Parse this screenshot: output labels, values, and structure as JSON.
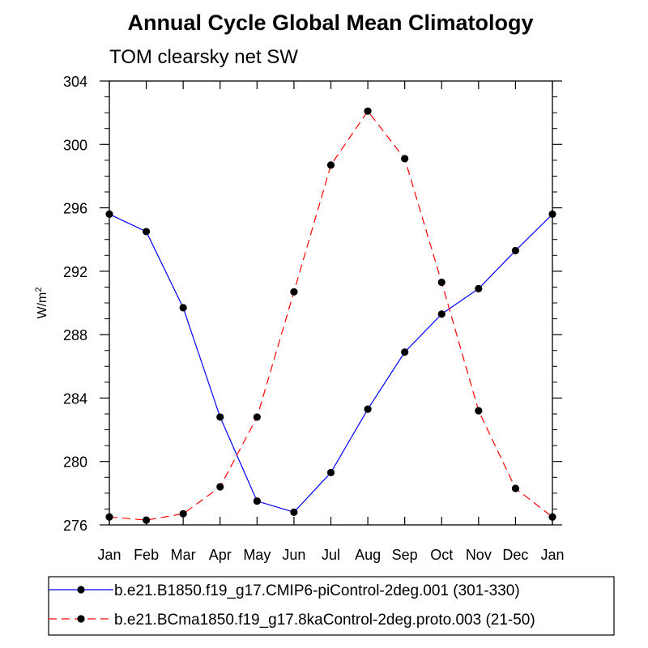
{
  "chart_data": {
    "type": "line",
    "title": "Annual Cycle Global Mean Climatology",
    "subtitle": "TOM clearsky net SW",
    "xlabel": "",
    "ylabel": "W/m",
    "ylabel_superscript": "2",
    "categories": [
      "Jan",
      "Feb",
      "Mar",
      "Apr",
      "May",
      "Jun",
      "Jul",
      "Aug",
      "Sep",
      "Oct",
      "Nov",
      "Dec",
      "Jan"
    ],
    "ylim": [
      276,
      304
    ],
    "yticks": [
      276,
      280,
      284,
      288,
      292,
      296,
      300,
      304
    ],
    "grid": false,
    "legend_position": "bottom",
    "series": [
      {
        "name": "b.e21.B1850.f19_g17.CMIP6-piControl-2deg.001 (301-330)",
        "color": "#0000ff",
        "dash": "solid",
        "values": [
          295.6,
          294.5,
          289.7,
          282.8,
          277.5,
          276.8,
          279.3,
          283.3,
          286.9,
          289.3,
          290.9,
          293.3,
          295.6
        ]
      },
      {
        "name": "b.e21.BCma1850.f19_g17.8kaControl-2deg.proto.003 (21-50)",
        "color": "#ff0000",
        "dash": "dashed",
        "values": [
          276.5,
          276.3,
          276.7,
          278.4,
          282.8,
          290.7,
          298.7,
          302.1,
          299.1,
          291.3,
          283.2,
          278.3,
          276.5
        ]
      }
    ]
  }
}
